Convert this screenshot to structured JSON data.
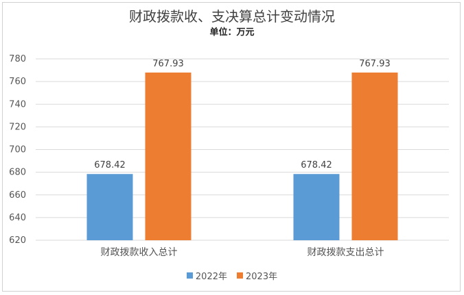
{
  "chart_data": {
    "type": "bar",
    "title": "财政拨款收、支决算总计变动情况",
    "subtitle": "单位：万元",
    "categories": [
      "财政拨款收入总计",
      "财政拨款支出总计"
    ],
    "series": [
      {
        "name": "2022年",
        "values": [
          678.42,
          678.42
        ],
        "color": "#5b9bd5",
        "labels": [
          "678.42",
          "678.42"
        ]
      },
      {
        "name": "2023年",
        "values": [
          767.93,
          767.93
        ],
        "color": "#ed7d31",
        "labels": [
          "767.93",
          "767.93"
        ]
      }
    ],
    "ylim": [
      620,
      780
    ],
    "yticks": [
      620,
      640,
      660,
      680,
      700,
      720,
      740,
      760,
      780
    ],
    "grid": true,
    "legend_position": "bottom"
  }
}
